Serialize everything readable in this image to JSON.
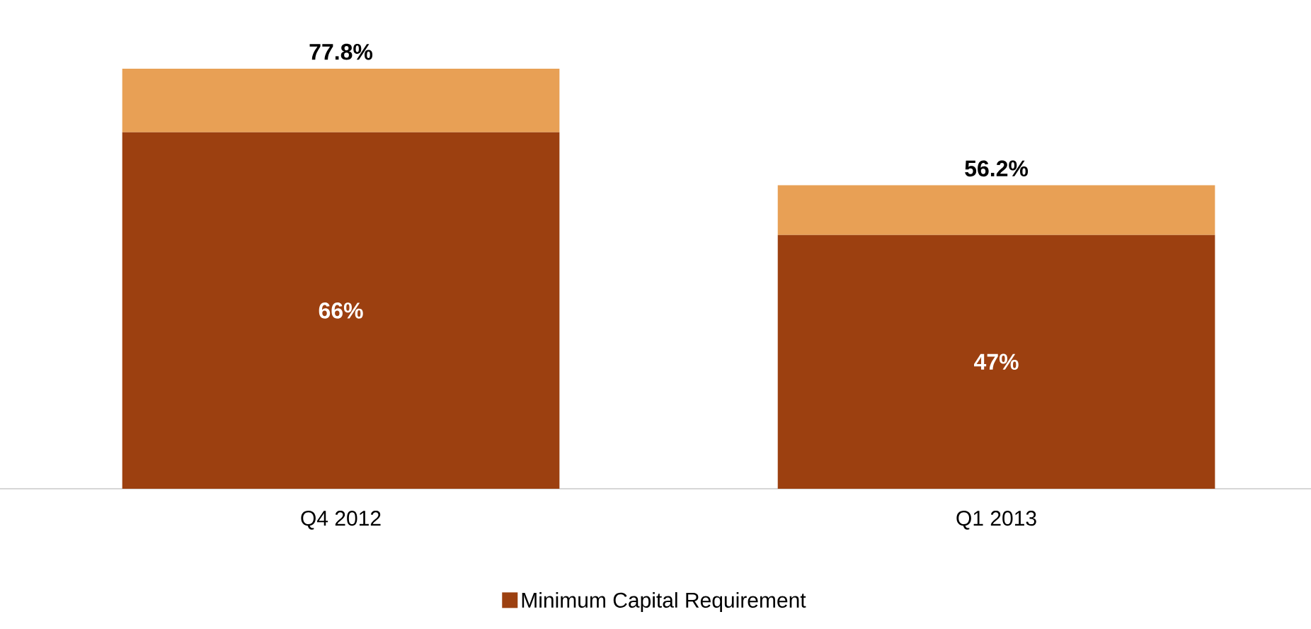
{
  "chart_data": {
    "type": "bar",
    "stacked": true,
    "categories": [
      "Q4 2012",
      "Q1 2013"
    ],
    "series": [
      {
        "name": "Minimum Capital Requirement",
        "color": "#9c4010",
        "values": [
          66,
          47
        ],
        "value_labels": [
          "66%",
          "47%"
        ]
      },
      {
        "color": "#e8a055",
        "values": [
          11.8,
          9.2
        ]
      }
    ],
    "totals": [
      "77.8%",
      "56.2%"
    ],
    "tick_labels": "x",
    "legend": "bottom"
  }
}
